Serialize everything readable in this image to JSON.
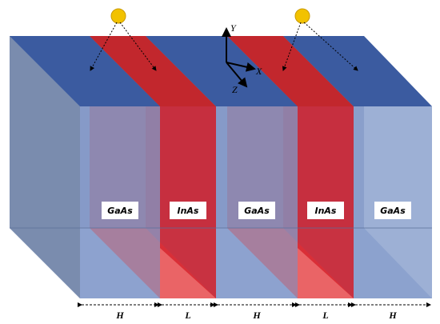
{
  "layers": [
    "GaAs",
    "InAs",
    "GaAs",
    "InAs",
    "GaAs"
  ],
  "dimensions": [
    "H",
    "L",
    "H",
    "L",
    "H"
  ],
  "axes": {
    "y": "Y",
    "x": "X",
    "z": "Z"
  }
}
